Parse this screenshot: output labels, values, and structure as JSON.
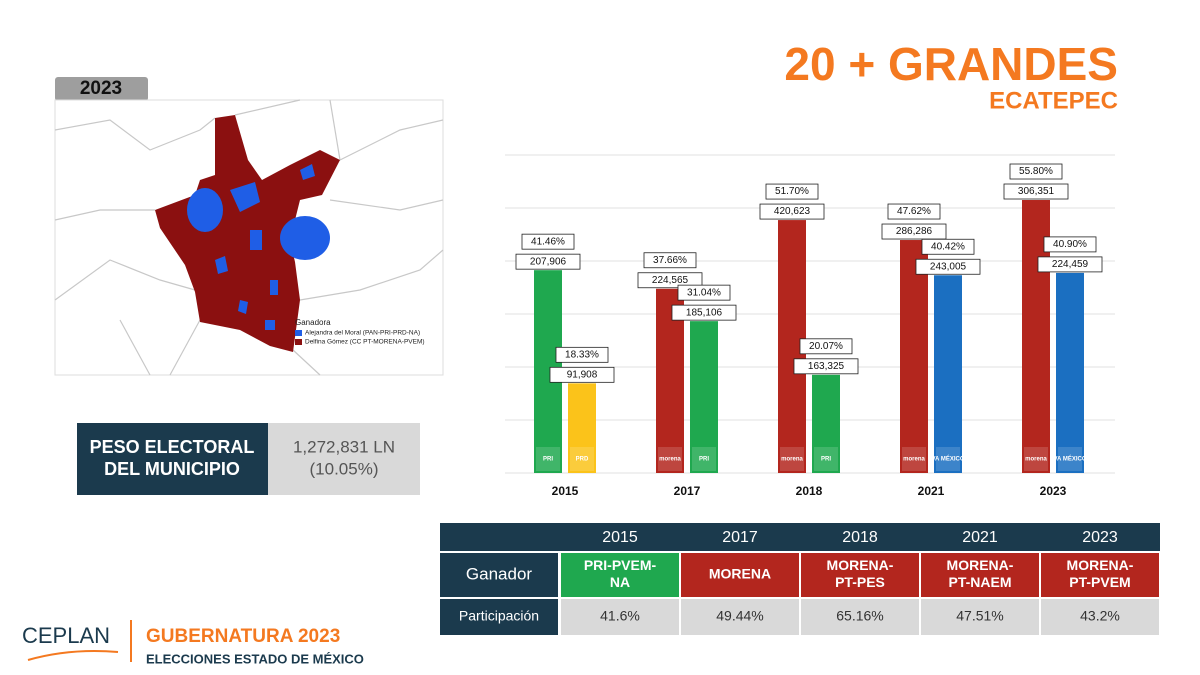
{
  "header": {
    "title": "20 + GRANDES",
    "subtitle": "ECATEPEC"
  },
  "map": {
    "badge": "2023",
    "legend_title": "Ganadora",
    "legend": [
      {
        "label": "Alejandra del Moral (PAN-PRI-PRD-NA)",
        "color": "#1f5ee6"
      },
      {
        "label": "Delfina Gómez (CC PT-MORENA-PVEM)",
        "color": "#8b1010"
      }
    ]
  },
  "weight": {
    "label_lines": [
      "PESO ELECTORAL",
      "DEL MUNICIPIO"
    ],
    "value_lines": [
      "1,272,831 LN",
      "(10.05%)"
    ]
  },
  "chart_data": {
    "type": "bar",
    "categories": [
      "2015",
      "2017",
      "2018",
      "2021",
      "2023"
    ],
    "ylim": [
      0,
      65
    ],
    "grid": true,
    "series": [
      {
        "colors": [
          "#1fa84f",
          "#b3261e",
          "#b3261e",
          "#b3261e",
          "#b3261e"
        ],
        "logos": [
          "PRI",
          "morena",
          "morena",
          "morena",
          "morena"
        ],
        "values": [
          41.46,
          37.66,
          51.7,
          47.62,
          55.8
        ],
        "value_labels": [
          "41.46%",
          "37.66%",
          "51.70%",
          "47.62%",
          "55.80%"
        ],
        "votes": [
          "207,906",
          "224,565",
          "420,623",
          "286,286",
          "306,351"
        ]
      },
      {
        "colors": [
          "#fbc31a",
          "#1fa84f",
          "#1fa84f",
          "#1b6fc1",
          "#1b6fc1"
        ],
        "logos": [
          "PRD",
          "PRI",
          "PRI",
          "VA MÉXICO",
          "VA MÉXICO"
        ],
        "values": [
          18.33,
          31.04,
          20.07,
          40.42,
          40.9
        ],
        "value_labels": [
          "18.33%",
          "31.04%",
          "20.07%",
          "40.42%",
          "40.90%"
        ],
        "votes": [
          "91,908",
          "185,106",
          "163,325",
          "243,005",
          "224,459"
        ]
      }
    ]
  },
  "table": {
    "columns": [
      "2015",
      "2017",
      "2018",
      "2021",
      "2023"
    ],
    "rows": [
      {
        "label": "Ganador",
        "colors": [
          "#1fa84f",
          "#b3261e",
          "#b3261e",
          "#b3261e",
          "#b3261e"
        ],
        "cells": [
          [
            "PRI-PVEM-",
            "NA"
          ],
          [
            "MORENA"
          ],
          [
            "MORENA-",
            "PT-PES"
          ],
          [
            "MORENA-",
            "PT-NAEM"
          ],
          [
            "MORENA-",
            "PT-PVEM"
          ]
        ]
      },
      {
        "label": "Participación",
        "cells": [
          "41.6%",
          "49.44%",
          "65.16%",
          "47.51%",
          "43.2%"
        ]
      }
    ]
  },
  "footer": {
    "brand": "CEPLAN",
    "title": "GUBERNATURA 2023",
    "subtitle": "ELECCIONES ESTADO DE MÉXICO"
  }
}
